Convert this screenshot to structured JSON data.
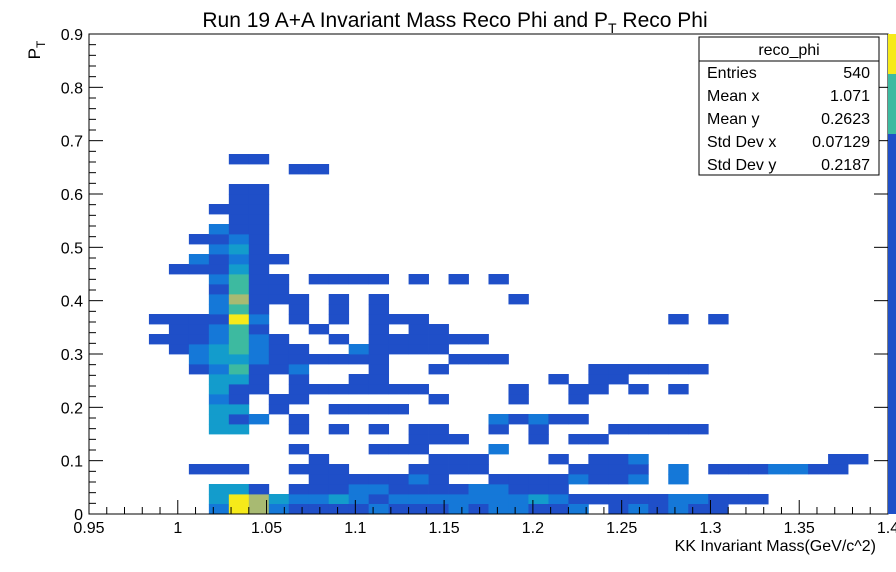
{
  "chart_data": {
    "type": "heatmap",
    "title": "Run 19 A+A Invariant Mass Reco Phi and P",
    "title_sub": "T",
    "title_suffix": " Reco Phi",
    "xlabel": "KK Invariant Mass(GeV/c^2)",
    "ylabel": "P",
    "ylabel_sub": "T",
    "xlim": [
      0.95,
      1.4
    ],
    "ylim": [
      0,
      0.9
    ],
    "x_ticks": [
      "0.95",
      "1",
      "1.05",
      "1.1",
      "1.15",
      "1.2",
      "1.25",
      "1.3",
      "1.35",
      "1.4"
    ],
    "y_ticks": [
      "0",
      "0.1",
      "0.2",
      "0.3",
      "0.4",
      "0.5",
      "0.6",
      "0.7",
      "0.8",
      "0.9"
    ],
    "bin_width_x": 0.01125,
    "bin_width_y": 0.01875,
    "colors": {
      "1": "#1f4fc8",
      "2": "#1578d8",
      "3": "#139ccc",
      "4": "#3dbaa0",
      "5": "#a8ba72",
      "6": "#f6ea1a"
    },
    "cells": [
      [
        6,
        1,
        3
      ],
      [
        7,
        1,
        6
      ],
      [
        8,
        1,
        5
      ],
      [
        9,
        1,
        3
      ],
      [
        10,
        1,
        2
      ],
      [
        11,
        1,
        2
      ],
      [
        12,
        1,
        3
      ],
      [
        13,
        1,
        2
      ],
      [
        14,
        1,
        1
      ],
      [
        15,
        1,
        2
      ],
      [
        16,
        1,
        2
      ],
      [
        17,
        1,
        2
      ],
      [
        18,
        1,
        2
      ],
      [
        19,
        1,
        2
      ],
      [
        20,
        1,
        2
      ],
      [
        21,
        1,
        2
      ],
      [
        22,
        1,
        3
      ],
      [
        23,
        1,
        2
      ],
      [
        24,
        1,
        1
      ],
      [
        25,
        1,
        1
      ],
      [
        26,
        1,
        1
      ],
      [
        27,
        1,
        1
      ],
      [
        28,
        1,
        1
      ],
      [
        29,
        1,
        2
      ],
      [
        30,
        1,
        2
      ],
      [
        31,
        1,
        1
      ],
      [
        32,
        1,
        1
      ],
      [
        33,
        1,
        1
      ],
      [
        6,
        0,
        2
      ],
      [
        7,
        0,
        6
      ],
      [
        8,
        0,
        5
      ],
      [
        9,
        0,
        2
      ],
      [
        10,
        0,
        1
      ],
      [
        11,
        0,
        1
      ],
      [
        12,
        0,
        1
      ],
      [
        13,
        0,
        1
      ],
      [
        14,
        0,
        2
      ],
      [
        15,
        0,
        1
      ],
      [
        16,
        0,
        1
      ],
      [
        17,
        0,
        1
      ],
      [
        18,
        0,
        2
      ],
      [
        19,
        0,
        1
      ],
      [
        20,
        0,
        2
      ],
      [
        21,
        0,
        2
      ],
      [
        22,
        0,
        1
      ],
      [
        23,
        0,
        1
      ],
      [
        24,
        0,
        2
      ],
      [
        26,
        0,
        1
      ],
      [
        27,
        0,
        2
      ],
      [
        28,
        0,
        1
      ],
      [
        29,
        0,
        2
      ],
      [
        30,
        0,
        1
      ],
      [
        31,
        0,
        1
      ],
      [
        6,
        2,
        3
      ],
      [
        7,
        2,
        3
      ],
      [
        8,
        2,
        1
      ],
      [
        10,
        2,
        1
      ],
      [
        11,
        2,
        1
      ],
      [
        12,
        2,
        1
      ],
      [
        13,
        2,
        2
      ],
      [
        14,
        2,
        2
      ],
      [
        15,
        2,
        1
      ],
      [
        16,
        2,
        1
      ],
      [
        17,
        2,
        1
      ],
      [
        18,
        2,
        1
      ],
      [
        19,
        2,
        2
      ],
      [
        20,
        2,
        2
      ],
      [
        21,
        2,
        1
      ],
      [
        22,
        2,
        1
      ],
      [
        23,
        2,
        1
      ],
      [
        11,
        3,
        1
      ],
      [
        12,
        3,
        1
      ],
      [
        13,
        3,
        1
      ],
      [
        14,
        3,
        1
      ],
      [
        15,
        3,
        1
      ],
      [
        16,
        3,
        2
      ],
      [
        17,
        3,
        1
      ],
      [
        20,
        3,
        1
      ],
      [
        21,
        3,
        1
      ],
      [
        22,
        3,
        1
      ],
      [
        23,
        3,
        1
      ],
      [
        24,
        3,
        2
      ],
      [
        25,
        3,
        1
      ],
      [
        26,
        3,
        1
      ],
      [
        27,
        3,
        2
      ],
      [
        29,
        3,
        2
      ],
      [
        5,
        4,
        1
      ],
      [
        6,
        4,
        1
      ],
      [
        7,
        4,
        1
      ],
      [
        10,
        4,
        1
      ],
      [
        11,
        4,
        1
      ],
      [
        12,
        4,
        1
      ],
      [
        16,
        4,
        1
      ],
      [
        17,
        4,
        1
      ],
      [
        18,
        4,
        1
      ],
      [
        19,
        4,
        1
      ],
      [
        24,
        4,
        1
      ],
      [
        25,
        4,
        1
      ],
      [
        26,
        4,
        1
      ],
      [
        27,
        4,
        1
      ],
      [
        29,
        4,
        2
      ],
      [
        31,
        4,
        1
      ],
      [
        32,
        4,
        1
      ],
      [
        33,
        4,
        1
      ],
      [
        34,
        4,
        2
      ],
      [
        35,
        4,
        2
      ],
      [
        36,
        4,
        1
      ],
      [
        37,
        4,
        1
      ],
      [
        11,
        5,
        1
      ],
      [
        17,
        5,
        1
      ],
      [
        18,
        5,
        1
      ],
      [
        19,
        5,
        1
      ],
      [
        23,
        5,
        1
      ],
      [
        25,
        5,
        1
      ],
      [
        26,
        5,
        1
      ],
      [
        27,
        5,
        2
      ],
      [
        37,
        5,
        1
      ],
      [
        38,
        5,
        1
      ],
      [
        10,
        6,
        1
      ],
      [
        14,
        6,
        1
      ],
      [
        15,
        6,
        1
      ],
      [
        16,
        6,
        1
      ],
      [
        20,
        6,
        2
      ],
      [
        16,
        7,
        1
      ],
      [
        17,
        7,
        1
      ],
      [
        18,
        7,
        1
      ],
      [
        22,
        7,
        1
      ],
      [
        24,
        7,
        1
      ],
      [
        25,
        7,
        1
      ],
      [
        6,
        8,
        3
      ],
      [
        7,
        8,
        3
      ],
      [
        10,
        8,
        1
      ],
      [
        12,
        8,
        1
      ],
      [
        14,
        8,
        1
      ],
      [
        16,
        8,
        1
      ],
      [
        17,
        8,
        1
      ],
      [
        20,
        8,
        1
      ],
      [
        22,
        8,
        1
      ],
      [
        26,
        8,
        1
      ],
      [
        27,
        8,
        1
      ],
      [
        28,
        8,
        1
      ],
      [
        29,
        8,
        1
      ],
      [
        30,
        8,
        1
      ],
      [
        6,
        9,
        3
      ],
      [
        7,
        9,
        1
      ],
      [
        8,
        9,
        2
      ],
      [
        10,
        9,
        1
      ],
      [
        20,
        9,
        2
      ],
      [
        21,
        9,
        1
      ],
      [
        22,
        9,
        2
      ],
      [
        23,
        9,
        1
      ],
      [
        24,
        9,
        1
      ],
      [
        6,
        10,
        3
      ],
      [
        7,
        10,
        3
      ],
      [
        9,
        10,
        1
      ],
      [
        12,
        10,
        1
      ],
      [
        13,
        10,
        1
      ],
      [
        14,
        10,
        1
      ],
      [
        15,
        10,
        1
      ],
      [
        6,
        11,
        2
      ],
      [
        7,
        11,
        1
      ],
      [
        9,
        11,
        1
      ],
      [
        10,
        11,
        1
      ],
      [
        17,
        11,
        1
      ],
      [
        21,
        11,
        1
      ],
      [
        24,
        11,
        1
      ],
      [
        6,
        12,
        3
      ],
      [
        7,
        12,
        1
      ],
      [
        8,
        12,
        1
      ],
      [
        10,
        12,
        1
      ],
      [
        11,
        12,
        1
      ],
      [
        12,
        12,
        1
      ],
      [
        13,
        12,
        1
      ],
      [
        14,
        12,
        1
      ],
      [
        15,
        12,
        1
      ],
      [
        16,
        12,
        1
      ],
      [
        21,
        12,
        1
      ],
      [
        24,
        12,
        1
      ],
      [
        25,
        12,
        1
      ],
      [
        27,
        12,
        1
      ],
      [
        29,
        12,
        1
      ],
      [
        6,
        13,
        3
      ],
      [
        7,
        13,
        3
      ],
      [
        8,
        13,
        1
      ],
      [
        10,
        13,
        1
      ],
      [
        13,
        13,
        1
      ],
      [
        14,
        13,
        1
      ],
      [
        23,
        13,
        1
      ],
      [
        25,
        13,
        1
      ],
      [
        26,
        13,
        1
      ],
      [
        5,
        14,
        1
      ],
      [
        6,
        14,
        2
      ],
      [
        7,
        14,
        4
      ],
      [
        8,
        14,
        1
      ],
      [
        9,
        14,
        1
      ],
      [
        10,
        14,
        2
      ],
      [
        14,
        14,
        1
      ],
      [
        17,
        14,
        1
      ],
      [
        25,
        14,
        1
      ],
      [
        26,
        14,
        1
      ],
      [
        27,
        14,
        1
      ],
      [
        28,
        14,
        1
      ],
      [
        29,
        14,
        1
      ],
      [
        30,
        14,
        1
      ],
      [
        5,
        15,
        2
      ],
      [
        6,
        15,
        3
      ],
      [
        7,
        15,
        3
      ],
      [
        8,
        15,
        2
      ],
      [
        9,
        15,
        1
      ],
      [
        10,
        15,
        1
      ],
      [
        11,
        15,
        1
      ],
      [
        12,
        15,
        1
      ],
      [
        13,
        15,
        1
      ],
      [
        14,
        15,
        1
      ],
      [
        18,
        15,
        1
      ],
      [
        19,
        15,
        1
      ],
      [
        20,
        15,
        1
      ],
      [
        4,
        16,
        1
      ],
      [
        5,
        16,
        2
      ],
      [
        6,
        16,
        3
      ],
      [
        7,
        16,
        4
      ],
      [
        8,
        16,
        2
      ],
      [
        9,
        16,
        1
      ],
      [
        10,
        16,
        1
      ],
      [
        13,
        16,
        2
      ],
      [
        14,
        16,
        1
      ],
      [
        15,
        16,
        1
      ],
      [
        16,
        16,
        1
      ],
      [
        17,
        16,
        1
      ],
      [
        3,
        17,
        1
      ],
      [
        4,
        17,
        1
      ],
      [
        5,
        17,
        1
      ],
      [
        6,
        17,
        2
      ],
      [
        7,
        17,
        4
      ],
      [
        8,
        17,
        2
      ],
      [
        9,
        17,
        1
      ],
      [
        12,
        17,
        1
      ],
      [
        14,
        17,
        1
      ],
      [
        15,
        17,
        1
      ],
      [
        16,
        17,
        1
      ],
      [
        17,
        17,
        1
      ],
      [
        18,
        17,
        1
      ],
      [
        19,
        17,
        1
      ],
      [
        4,
        18,
        1
      ],
      [
        5,
        18,
        1
      ],
      [
        6,
        18,
        2
      ],
      [
        7,
        18,
        4
      ],
      [
        8,
        18,
        1
      ],
      [
        11,
        18,
        1
      ],
      [
        14,
        18,
        1
      ],
      [
        16,
        18,
        1
      ],
      [
        17,
        18,
        1
      ],
      [
        3,
        19,
        1
      ],
      [
        4,
        19,
        1
      ],
      [
        5,
        19,
        1
      ],
      [
        6,
        19,
        1
      ],
      [
        7,
        19,
        6
      ],
      [
        8,
        19,
        2
      ],
      [
        10,
        19,
        1
      ],
      [
        12,
        19,
        1
      ],
      [
        14,
        19,
        1
      ],
      [
        15,
        19,
        1
      ],
      [
        16,
        19,
        1
      ],
      [
        29,
        19,
        1
      ],
      [
        31,
        19,
        1
      ],
      [
        6,
        20,
        2
      ],
      [
        7,
        20,
        4
      ],
      [
        8,
        20,
        1
      ],
      [
        10,
        20,
        1
      ],
      [
        12,
        20,
        1
      ],
      [
        14,
        20,
        1
      ],
      [
        6,
        21,
        2
      ],
      [
        7,
        21,
        5
      ],
      [
        8,
        21,
        1
      ],
      [
        9,
        21,
        1
      ],
      [
        10,
        21,
        1
      ],
      [
        12,
        21,
        1
      ],
      [
        14,
        21,
        1
      ],
      [
        21,
        21,
        1
      ],
      [
        6,
        22,
        1
      ],
      [
        7,
        22,
        4
      ],
      [
        8,
        22,
        1
      ],
      [
        9,
        22,
        1
      ],
      [
        6,
        23,
        2
      ],
      [
        7,
        23,
        4
      ],
      [
        8,
        23,
        1
      ],
      [
        9,
        23,
        1
      ],
      [
        11,
        23,
        1
      ],
      [
        12,
        23,
        1
      ],
      [
        13,
        23,
        1
      ],
      [
        14,
        23,
        1
      ],
      [
        16,
        23,
        1
      ],
      [
        18,
        23,
        1
      ],
      [
        20,
        23,
        1
      ],
      [
        4,
        24,
        1
      ],
      [
        5,
        24,
        1
      ],
      [
        6,
        24,
        1
      ],
      [
        7,
        24,
        3
      ],
      [
        8,
        24,
        1
      ],
      [
        5,
        25,
        2
      ],
      [
        6,
        25,
        1
      ],
      [
        7,
        25,
        2
      ],
      [
        8,
        25,
        1
      ],
      [
        9,
        25,
        1
      ],
      [
        6,
        26,
        2
      ],
      [
        7,
        26,
        3
      ],
      [
        8,
        26,
        1
      ],
      [
        5,
        27,
        1
      ],
      [
        6,
        27,
        1
      ],
      [
        7,
        27,
        2
      ],
      [
        8,
        27,
        1
      ],
      [
        6,
        28,
        2
      ],
      [
        7,
        28,
        1
      ],
      [
        8,
        28,
        1
      ],
      [
        7,
        29,
        1
      ],
      [
        8,
        29,
        1
      ],
      [
        6,
        30,
        1
      ],
      [
        7,
        30,
        1
      ],
      [
        8,
        30,
        1
      ],
      [
        7,
        31,
        1
      ],
      [
        8,
        31,
        1
      ],
      [
        7,
        32,
        1
      ],
      [
        8,
        32,
        1
      ],
      [
        10,
        34,
        1
      ],
      [
        11,
        34,
        1
      ],
      [
        7,
        35,
        1
      ],
      [
        8,
        35,
        1
      ]
    ]
  },
  "stats": {
    "title": "reco_phi",
    "rows": [
      {
        "label": "Entries",
        "value": "540"
      },
      {
        "label": "Mean x",
        "value": "1.071"
      },
      {
        "label": "Mean y",
        "value": "0.2623"
      },
      {
        "label": "Std Dev x",
        "value": "0.07129"
      },
      {
        "label": "Std Dev y",
        "value": "0.2187"
      }
    ]
  }
}
